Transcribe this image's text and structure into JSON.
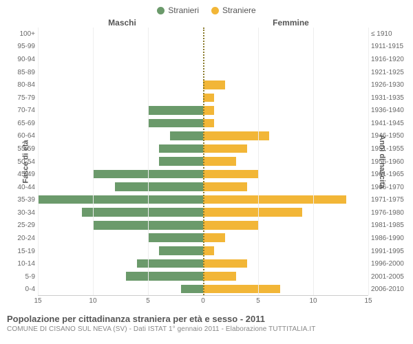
{
  "legend": {
    "male": {
      "label": "Stranieri",
      "color": "#6b9a6b"
    },
    "female": {
      "label": "Straniere",
      "color": "#f2b637"
    }
  },
  "headers": {
    "male": "Maschi",
    "female": "Femmine"
  },
  "y_axis_left": {
    "title": "Fasce di età"
  },
  "y_axis_right": {
    "title": "Anni di nascita"
  },
  "chart": {
    "type": "population-pyramid",
    "x_max": 15,
    "x_ticks": [
      15,
      10,
      5,
      0,
      5,
      10,
      15
    ],
    "grid_color": "#eeeeee",
    "center_line_color": "#8a7a2a",
    "bar_male_color": "#6b9a6b",
    "bar_female_color": "#f2b637",
    "rows": [
      {
        "age": "100+",
        "birth": "≤ 1910",
        "male": 0,
        "female": 0
      },
      {
        "age": "95-99",
        "birth": "1911-1915",
        "male": 0,
        "female": 0
      },
      {
        "age": "90-94",
        "birth": "1916-1920",
        "male": 0,
        "female": 0
      },
      {
        "age": "85-89",
        "birth": "1921-1925",
        "male": 0,
        "female": 0
      },
      {
        "age": "80-84",
        "birth": "1926-1930",
        "male": 0,
        "female": 2
      },
      {
        "age": "75-79",
        "birth": "1931-1935",
        "male": 0,
        "female": 1
      },
      {
        "age": "70-74",
        "birth": "1936-1940",
        "male": 5,
        "female": 1
      },
      {
        "age": "65-69",
        "birth": "1941-1945",
        "male": 5,
        "female": 1
      },
      {
        "age": "60-64",
        "birth": "1946-1950",
        "male": 3,
        "female": 6
      },
      {
        "age": "55-59",
        "birth": "1951-1955",
        "male": 4,
        "female": 4
      },
      {
        "age": "50-54",
        "birth": "1956-1960",
        "male": 4,
        "female": 3
      },
      {
        "age": "45-49",
        "birth": "1961-1965",
        "male": 10,
        "female": 5
      },
      {
        "age": "40-44",
        "birth": "1966-1970",
        "male": 8,
        "female": 4
      },
      {
        "age": "35-39",
        "birth": "1971-1975",
        "male": 15,
        "female": 13
      },
      {
        "age": "30-34",
        "birth": "1976-1980",
        "male": 11,
        "female": 9
      },
      {
        "age": "25-29",
        "birth": "1981-1985",
        "male": 10,
        "female": 5
      },
      {
        "age": "20-24",
        "birth": "1986-1990",
        "male": 5,
        "female": 2
      },
      {
        "age": "15-19",
        "birth": "1991-1995",
        "male": 4,
        "female": 1
      },
      {
        "age": "10-14",
        "birth": "1996-2000",
        "male": 6,
        "female": 4
      },
      {
        "age": "5-9",
        "birth": "2001-2005",
        "male": 7,
        "female": 3
      },
      {
        "age": "0-4",
        "birth": "2006-2010",
        "male": 2,
        "female": 7
      }
    ]
  },
  "footer": {
    "title": "Popolazione per cittadinanza straniera per età e sesso - 2011",
    "sub": "COMUNE DI CISANO SUL NEVA (SV) - Dati ISTAT 1° gennaio 2011 - Elaborazione TUTTITALIA.IT"
  }
}
